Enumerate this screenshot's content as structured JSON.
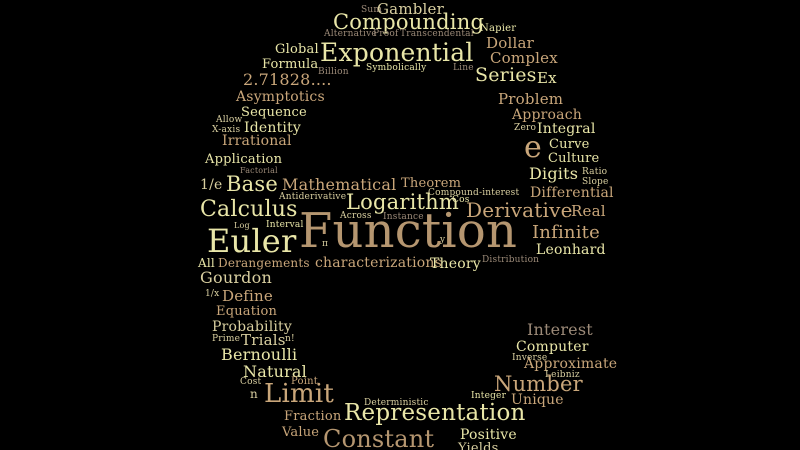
{
  "colors": {
    "background": "#000000",
    "palette": [
      "#e9e6a8",
      "#d9cfa0",
      "#c9a67a",
      "#b59670",
      "#9c8a78",
      "#d9d29a",
      "#c7bfa2"
    ]
  },
  "words": [
    "Sum",
    "Gambler",
    "Compounding",
    "Alternative",
    "Proof",
    "Transcendental",
    "Napier",
    "Dollar",
    "Global",
    "Exponential",
    "Complex",
    "Formula",
    "Billion",
    "Symbolically",
    "Line",
    "Series",
    "Ex",
    "2.71828....",
    "Asymptotics",
    "Problem",
    "Sequence",
    "Approach",
    "Allow",
    "X-axis",
    "Identity",
    "Zero",
    "Integral",
    "Irrational",
    "e",
    "Curve",
    "Culture",
    "Application",
    "Factorial",
    "Digits",
    "Ratio",
    "Slope",
    "1/e",
    "Base",
    "Mathematical",
    "Theorem",
    "Compound-interest",
    "Differential",
    "Antiderivative",
    "Calculus",
    "Logarithm",
    "Cos",
    "Derivative",
    "Real",
    "Across",
    "Instance",
    "Log",
    "Interval",
    "Euler",
    "Function",
    "π",
    "y",
    "Infinite",
    "Leonhard",
    "All",
    "Derangements",
    "characterizations",
    "Theory",
    "Distribution",
    "Gourdon",
    "1/x",
    "Define",
    "Equation",
    "Probability",
    "Interest",
    "Prime",
    "Trials",
    "n!",
    "Computer",
    "Bernoulli",
    "Inverse",
    "Approximate",
    "Natural",
    "Leibniz",
    "Cost",
    "Point",
    "Number",
    "n",
    "Limit",
    "Deterministic",
    "Integer",
    "Unique",
    "Fraction",
    "Representation",
    "Value",
    "Constant",
    "Positive",
    "Yields"
  ]
}
